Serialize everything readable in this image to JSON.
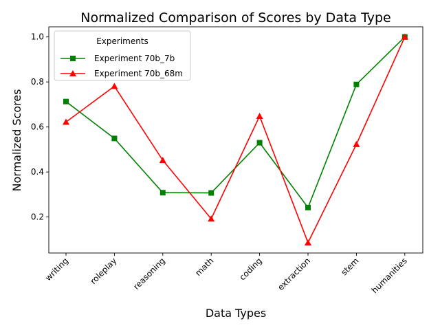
{
  "chart_data": {
    "type": "line",
    "title": "Normalized Comparison of Scores by Data Type",
    "xlabel": "Data Types",
    "ylabel": "Normalized Scores",
    "categories": [
      "writing",
      "roleplay",
      "reasoning",
      "math",
      "coding",
      "extraction",
      "stem",
      "humanities"
    ],
    "yticks": [
      0.2,
      0.4,
      0.6,
      0.8,
      1.0
    ],
    "ytick_labels": [
      "0.2",
      "0.4",
      "0.6",
      "0.8",
      "1.0"
    ],
    "ylim": [
      0.04,
      1.045
    ],
    "grid": false,
    "legend": {
      "title": "Experiments",
      "placement": "top-left"
    },
    "series": [
      {
        "name": "Experiment 70b_7b",
        "color": "#008000",
        "marker": "square",
        "values": [
          0.713,
          0.549,
          0.308,
          0.307,
          0.53,
          0.242,
          0.789,
          1.0
        ]
      },
      {
        "name": "Experiment 70b_68m",
        "color": "#ff0000",
        "marker": "triangle",
        "values": [
          0.622,
          0.781,
          0.452,
          0.192,
          0.648,
          0.086,
          0.523,
          1.0
        ]
      }
    ]
  }
}
